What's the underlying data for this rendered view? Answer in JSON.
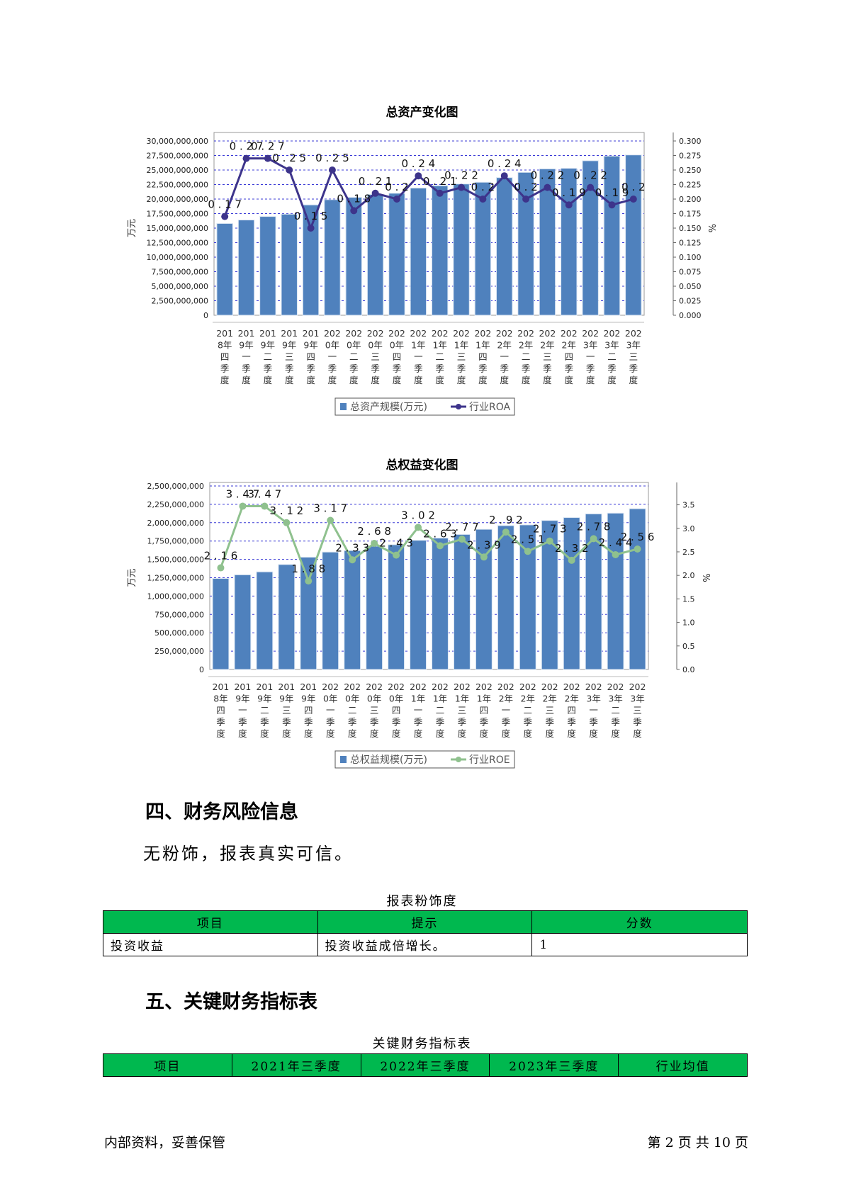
{
  "charts": {
    "assets": {
      "title": "总资产变化图",
      "ylabel_left": "万元",
      "ylabel_right": "%",
      "left_ticks": [
        "0",
        "2,500,000,000",
        "5,000,000,000",
        "7,500,000,000",
        "10,000,000,000",
        "12,500,000,000",
        "15,000,000,000",
        "17,500,000,000",
        "20,000,000,000",
        "22,500,000,000",
        "25,000,000,000",
        "27,500,000,000",
        "30,000,000,000"
      ],
      "right_ticks": [
        "0.000",
        "0.025",
        "0.050",
        "0.075",
        "0.100",
        "0.125",
        "0.150",
        "0.175",
        "0.200",
        "0.225",
        "0.250",
        "0.275",
        "0.300"
      ],
      "legend_bar": "总资产规模(万元)",
      "legend_line": "行业ROA"
    },
    "equity": {
      "title": "总权益变化图",
      "ylabel_left": "万元",
      "ylabel_right": "%",
      "left_ticks": [
        "0",
        "250,000,000",
        "500,000,000",
        "750,000,000",
        "1,000,000,000",
        "1,250,000,000",
        "1,500,000,000",
        "1,750,000,000",
        "2,000,000,000",
        "2,250,000,000",
        "2,500,000,000"
      ],
      "right_ticks": [
        "0.0",
        "0.5",
        "1.0",
        "1.5",
        "2.0",
        "2.5",
        "3.0",
        "3.5"
      ],
      "legend_bar": "总权益规模(万元)",
      "legend_line": "行业ROE"
    }
  },
  "chart_data": [
    {
      "type": "bar",
      "title": "总资产变化图",
      "ylabel": "万元",
      "y2label": "%",
      "ylim": [
        0,
        30000000000
      ],
      "y2lim": [
        0,
        0.3
      ],
      "grid": true,
      "legend": "bottom",
      "categories": [
        "2018年四季度",
        "2019年一季度",
        "2019年二季度",
        "2019年三季度",
        "2019年四季度",
        "2020年一季度",
        "2020年二季度",
        "2020年三季度",
        "2020年四季度",
        "2021年一季度",
        "2021年二季度",
        "2021年三季度",
        "2021年四季度",
        "2022年一季度",
        "2022年二季度",
        "2022年三季度",
        "2022年四季度",
        "2023年一季度",
        "2023年二季度",
        "2023年三季度"
      ],
      "series": [
        {
          "name": "总资产规模(万元)",
          "type": "bar",
          "color": "#4f81bd",
          "values": [
            15800000000,
            16400000000,
            17000000000,
            17400000000,
            19000000000,
            19900000000,
            20300000000,
            20800000000,
            21000000000,
            21900000000,
            22300000000,
            22600000000,
            22900000000,
            23700000000,
            24600000000,
            25200000000,
            25300000000,
            26600000000,
            27400000000,
            27600000000
          ]
        },
        {
          "name": "行业ROA",
          "type": "line",
          "axis": "right",
          "color": "#3d348b",
          "values": [
            0.17,
            0.27,
            0.27,
            0.25,
            0.15,
            0.25,
            0.18,
            0.21,
            0.2,
            0.24,
            0.21,
            0.22,
            0.2,
            0.24,
            0.2,
            0.22,
            0.19,
            0.22,
            0.19,
            0.2
          ],
          "labels": [
            "0.17",
            "0.27",
            "0.27",
            "0.25",
            "0.15",
            "0.25",
            "0.18",
            "0.21",
            "0.2",
            "0.24",
            "0.21",
            "0.22",
            "0.2",
            "0.24",
            "0.2",
            "0.22",
            "0.19",
            "0.22",
            "0.19",
            "0.2"
          ]
        }
      ]
    },
    {
      "type": "bar",
      "title": "总权益变化图",
      "ylabel": "万元",
      "y2label": "%",
      "ylim": [
        0,
        2500000000
      ],
      "y2lim": [
        0,
        3.9
      ],
      "grid": true,
      "legend": "bottom",
      "categories": [
        "2018年四季度",
        "2019年一季度",
        "2019年二季度",
        "2019年三季度",
        "2019年四季度",
        "2020年一季度",
        "2020年二季度",
        "2020年三季度",
        "2020年四季度",
        "2021年一季度",
        "2021年二季度",
        "2021年三季度",
        "2021年四季度",
        "2022年一季度",
        "2022年二季度",
        "2022年三季度",
        "2022年四季度",
        "2023年一季度",
        "2023年二季度",
        "2023年三季度"
      ],
      "series": [
        {
          "name": "总权益规模(万元)",
          "type": "bar",
          "color": "#4f81bd",
          "values": [
            1240000000,
            1290000000,
            1330000000,
            1430000000,
            1530000000,
            1600000000,
            1620000000,
            1680000000,
            1700000000,
            1760000000,
            1790000000,
            1840000000,
            1910000000,
            1960000000,
            1970000000,
            2030000000,
            2070000000,
            2120000000,
            2130000000,
            2190000000
          ]
        },
        {
          "name": "行业ROE",
          "type": "line",
          "axis": "right",
          "color": "#8fc18e",
          "values": [
            2.16,
            3.47,
            3.47,
            3.12,
            1.88,
            3.17,
            2.33,
            2.68,
            2.43,
            3.02,
            2.63,
            2.77,
            2.39,
            2.92,
            2.51,
            2.73,
            2.32,
            2.78,
            2.44,
            2.56
          ],
          "labels": [
            "2.16",
            "3.47",
            "3.47",
            "3.12",
            "1.88",
            "3.17",
            "2.33",
            "2.68",
            "2.43",
            "3.02",
            "2.63",
            "2.77",
            "2.39",
            "2.92",
            "2.51",
            "2.73",
            "2.32",
            "2.78",
            "2.44",
            "2.56"
          ]
        }
      ]
    }
  ],
  "section4": {
    "heading": "四、财务风险信息",
    "paragraph": "无粉饰，报表真实可信。",
    "table_caption": "报表粉饰度",
    "table_headers": [
      "项目",
      "提示",
      "分数"
    ],
    "table_rows": [
      [
        "投资收益",
        "投资收益成倍增长。",
        "1"
      ]
    ]
  },
  "section5": {
    "heading": "五、关键财务指标表",
    "table_caption": "关键财务指标表",
    "table_headers": [
      "项目",
      "2021年三季度",
      "2022年三季度",
      "2023年三季度",
      "行业均值"
    ]
  },
  "footer": {
    "left": "内部资料，妥善保管",
    "right": "第 2 页  共 10 页"
  },
  "colors": {
    "bar": "#4f81bd",
    "roa_line": "#3d348b",
    "roe_line": "#8fc18e",
    "grid": "#3b3bd6",
    "table_header": "#00b84f"
  }
}
